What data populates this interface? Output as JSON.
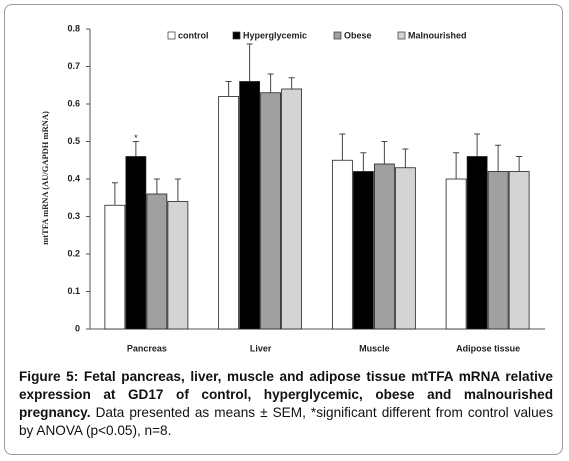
{
  "chart_data": {
    "type": "bar",
    "ylabel": "mtTFA mRNA (AU/GAPDH mRNA)",
    "categories": [
      "Pancreas",
      "Liver",
      "Muscle",
      "Adipose tissue"
    ],
    "series": [
      {
        "name": "control",
        "color": "#ffffff",
        "values": [
          0.33,
          0.62,
          0.45,
          0.4
        ],
        "errors": [
          0.06,
          0.04,
          0.07,
          0.07
        ]
      },
      {
        "name": "Hyperglycemic",
        "color": "#000000",
        "values": [
          0.46,
          0.66,
          0.42,
          0.46
        ],
        "errors": [
          0.04,
          0.1,
          0.05,
          0.06
        ]
      },
      {
        "name": "Obese",
        "color": "#a0a0a0",
        "values": [
          0.36,
          0.63,
          0.44,
          0.42
        ],
        "errors": [
          0.04,
          0.05,
          0.06,
          0.07
        ]
      },
      {
        "name": "Malnourished",
        "color": "#d4d4d4",
        "values": [
          0.34,
          0.64,
          0.43,
          0.42
        ],
        "errors": [
          0.06,
          0.03,
          0.05,
          0.04
        ]
      }
    ],
    "annotation": "*",
    "ylim": [
      0,
      0.8
    ],
    "yticks": [
      0,
      0.1,
      0.2,
      0.3,
      0.4,
      0.5,
      0.6,
      0.7,
      0.8
    ],
    "grid": false
  },
  "caption": {
    "bold": "Figure 5: Fetal pancreas, liver, muscle and adipose tissue mtTFA mRNA relative expression at GD17 of control, hyperglycemic, obese and malnourished pregnancy.",
    "text": "Data presented as means ± SEM, *significant different from control values by ANOVA (p<0.05), n=8."
  }
}
